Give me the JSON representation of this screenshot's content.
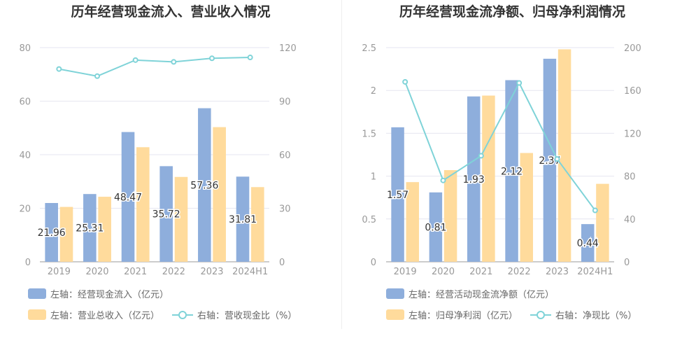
{
  "colors": {
    "bar_blue": "#8eaedc",
    "bar_yellow": "#ffdb9c",
    "line_teal": "#7fd3d8",
    "axis_text": "#999999",
    "grid": "#e6e6f0"
  },
  "chart_data": [
    {
      "type": "bar",
      "title": "历年经营现金流入、营业收入情况",
      "categories": [
        "2019",
        "2020",
        "2021",
        "2022",
        "2023",
        "2024H1"
      ],
      "y_left_ticks": [
        "0",
        "20",
        "40",
        "60",
        "80"
      ],
      "y_right_ticks": [
        "0",
        "30",
        "60",
        "90",
        "120"
      ],
      "ylim_left": [
        0,
        80
      ],
      "ylim_right": [
        0,
        120
      ],
      "series": [
        {
          "name": "左轴：经营现金流入（亿元）",
          "axis": "left",
          "kind": "bar",
          "color": "#8eaedc",
          "values": [
            21.96,
            25.31,
            48.47,
            35.72,
            57.36,
            31.81
          ],
          "labels": [
            "21.96",
            "25.31",
            "48.47",
            "35.72",
            "57.36",
            "31.81"
          ]
        },
        {
          "name": "左轴：营业总收入（亿元）",
          "axis": "left",
          "kind": "bar",
          "color": "#ffdb9c",
          "values": [
            20.5,
            24.3,
            42.8,
            31.7,
            50.3,
            27.9
          ]
        },
        {
          "name": "右轴：营收现金比（%）",
          "axis": "right",
          "kind": "line",
          "color": "#7fd3d8",
          "values": [
            108,
            104,
            113,
            112,
            114,
            114.5
          ]
        }
      ],
      "legend": "bottom",
      "grid": true
    },
    {
      "type": "bar",
      "title": "历年经营现金流净额、归母净利润情况",
      "categories": [
        "2019",
        "2020",
        "2021",
        "2022",
        "2023",
        "2024H1"
      ],
      "y_left_ticks": [
        "0",
        "0.5",
        "1",
        "1.5",
        "2",
        "2.5"
      ],
      "y_right_ticks": [
        "0",
        "40",
        "80",
        "120",
        "160",
        "200"
      ],
      "ylim_left": [
        0,
        2.5
      ],
      "ylim_right": [
        0,
        200
      ],
      "series": [
        {
          "name": "左轴：经营活动现金流净额（亿元）",
          "axis": "left",
          "kind": "bar",
          "color": "#8eaedc",
          "values": [
            1.57,
            0.81,
            1.93,
            2.12,
            2.37,
            0.44
          ],
          "labels": [
            "1.57",
            "0.81",
            "1.93",
            "2.12",
            "2.37",
            "0.44"
          ]
        },
        {
          "name": "左轴：归母净利润（亿元）",
          "axis": "left",
          "kind": "bar",
          "color": "#ffdb9c",
          "values": [
            0.93,
            1.07,
            1.94,
            1.27,
            2.48,
            0.91
          ]
        },
        {
          "name": "右轴：净现比（%）",
          "axis": "right",
          "kind": "line",
          "color": "#7fd3d8",
          "values": [
            168,
            76,
            99,
            167,
            96,
            48
          ]
        }
      ],
      "legend": "bottom",
      "grid": true
    }
  ]
}
